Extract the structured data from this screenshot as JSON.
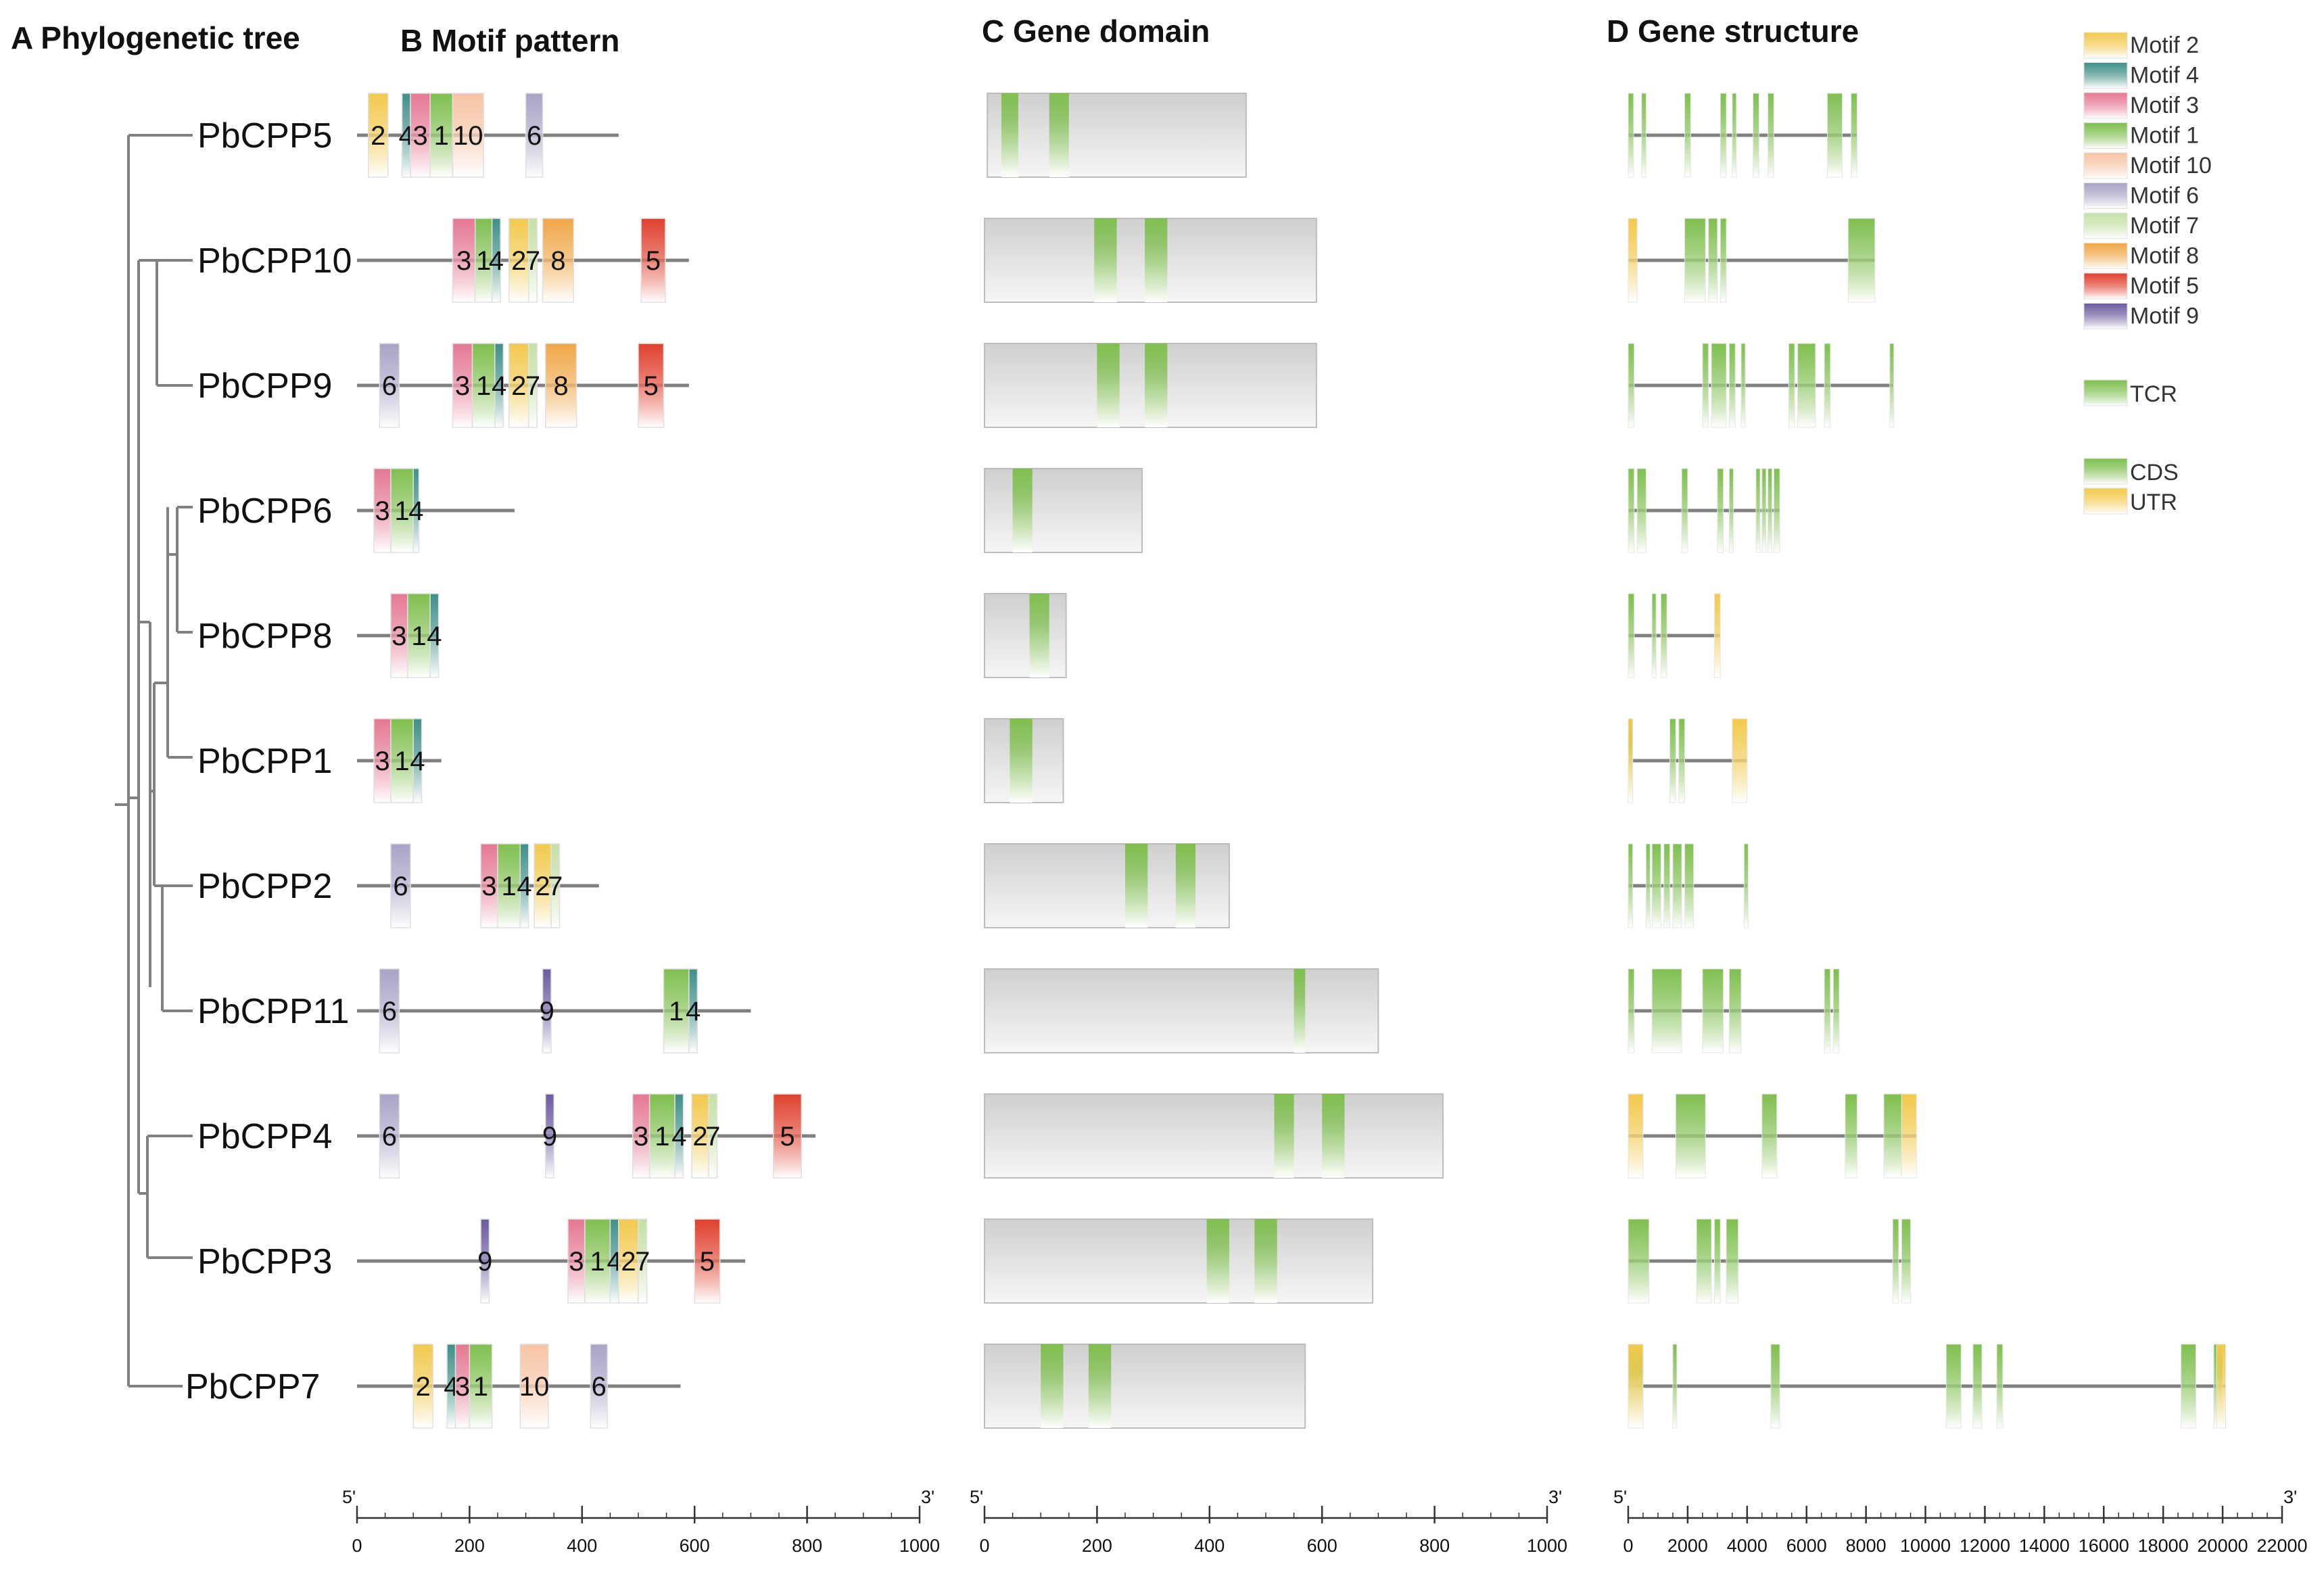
{
  "panels": {
    "a": "A Phylogenetic tree",
    "b": "B Motif pattern",
    "c": "C Gene domain",
    "d": "D Gene structure"
  },
  "colors": {
    "motif_1": "#7fbf4e",
    "motif_2": "#f2c94c",
    "motif_3": "#e57893",
    "motif_4": "#3f8f88",
    "motif_5": "#e0402e",
    "motif_6": "#a9a3c6",
    "motif_7": "#c5e0a6",
    "motif_8": "#f0a748",
    "motif_9": "#6c5a9e",
    "motif_10": "#f7c4a4",
    "tcr": "#7fbf4e",
    "cds": "#7fbf4e",
    "utr": "#f2c94c",
    "line": "#808080",
    "domain_box": "#d9d9d9"
  },
  "legend": {
    "motifs": [
      {
        "id": "2",
        "label": "Motif 2"
      },
      {
        "id": "4",
        "label": "Motif 4"
      },
      {
        "id": "3",
        "label": "Motif 3"
      },
      {
        "id": "1",
        "label": "Motif 1"
      },
      {
        "id": "10",
        "label": "Motif 10"
      },
      {
        "id": "6",
        "label": "Motif 6"
      },
      {
        "id": "7",
        "label": "Motif 7"
      },
      {
        "id": "8",
        "label": "Motif 8"
      },
      {
        "id": "5",
        "label": "Motif 5"
      },
      {
        "id": "9",
        "label": "Motif 9"
      }
    ],
    "tcr": "TCR",
    "cds": "CDS",
    "utr": "UTR"
  },
  "axes": {
    "b": {
      "min": 0,
      "max": 1000,
      "ticks": [
        "0",
        "200",
        "400",
        "600",
        "800",
        "1000"
      ],
      "start": "5'",
      "end": "3'"
    },
    "c": {
      "min": 0,
      "max": 1000,
      "ticks": [
        "0",
        "200",
        "400",
        "600",
        "800",
        "1000"
      ],
      "start": "5'",
      "end": "3'"
    },
    "d": {
      "min": 0,
      "max": 22000,
      "ticks": [
        "0",
        "2000",
        "4000",
        "6000",
        "8000",
        "10000",
        "12000",
        "14000",
        "16000",
        "18000",
        "20000",
        "22000"
      ],
      "start": "5'",
      "end": "3'"
    }
  },
  "genes": [
    {
      "name": "PbCPP5",
      "length": 465,
      "motifs": [
        [
          20,
          55,
          "2",
          "2"
        ],
        [
          80,
          95,
          "4",
          "4"
        ],
        [
          95,
          130,
          "3",
          "3"
        ],
        [
          130,
          170,
          "1",
          "1"
        ],
        [
          170,
          225,
          "10",
          "10"
        ],
        [
          300,
          330,
          "6",
          "6"
        ]
      ],
      "domain": {
        "start": 5,
        "end": 465,
        "tcr": [
          [
            30,
            60
          ],
          [
            115,
            150
          ]
        ]
      },
      "structure": {
        "start": 0,
        "end": 7700,
        "cds": [
          [
            0,
            180
          ],
          [
            450,
            600
          ],
          [
            1900,
            2100
          ],
          [
            3100,
            3300
          ],
          [
            3500,
            3600
          ],
          [
            4200,
            4400
          ],
          [
            4700,
            4900
          ],
          [
            6700,
            7200
          ],
          [
            7500,
            7700
          ]
        ],
        "utr": []
      }
    },
    {
      "name": "PbCPP10",
      "length": 590,
      "motifs": [
        [
          170,
          210,
          "3",
          "3"
        ],
        [
          210,
          240,
          "1",
          "1"
        ],
        [
          240,
          255,
          "4",
          "4"
        ],
        [
          270,
          305,
          "2",
          "2"
        ],
        [
          305,
          320,
          "7",
          "7"
        ],
        [
          330,
          385,
          "8",
          "8"
        ],
        [
          505,
          548,
          "5",
          "5"
        ]
      ],
      "domain": {
        "start": 0,
        "end": 590,
        "tcr": [
          [
            195,
            235
          ],
          [
            285,
            325
          ]
        ]
      },
      "structure": {
        "start": 0,
        "end": 8300,
        "cds": [
          [
            1900,
            2600
          ],
          [
            2700,
            3000
          ],
          [
            3100,
            3300
          ],
          [
            7400,
            8300
          ]
        ],
        "utr": [
          [
            0,
            300
          ]
        ]
      }
    },
    {
      "name": "PbCPP9",
      "length": 590,
      "motifs": [
        [
          40,
          75,
          "6",
          "6"
        ],
        [
          170,
          205,
          "3",
          "3"
        ],
        [
          205,
          245,
          "1",
          "1"
        ],
        [
          245,
          260,
          "4",
          "4"
        ],
        [
          270,
          305,
          "2",
          "2"
        ],
        [
          305,
          320,
          "7",
          "7"
        ],
        [
          335,
          390,
          "8",
          "8"
        ],
        [
          500,
          545,
          "5",
          "5"
        ]
      ],
      "domain": {
        "start": 0,
        "end": 590,
        "tcr": [
          [
            200,
            240
          ],
          [
            285,
            325
          ]
        ]
      },
      "structure": {
        "start": 0,
        "end": 8900,
        "cds": [
          [
            0,
            200
          ],
          [
            2500,
            2700
          ],
          [
            2800,
            3300
          ],
          [
            3400,
            3600
          ],
          [
            3800,
            3900
          ],
          [
            5400,
            5600
          ],
          [
            5700,
            6300
          ],
          [
            6600,
            6800
          ],
          [
            8800,
            8900
          ]
        ],
        "utr": []
      }
    },
    {
      "name": "PbCPP6",
      "length": 280,
      "motifs": [
        [
          30,
          60,
          "3",
          "3"
        ],
        [
          60,
          100,
          "1",
          "1"
        ],
        [
          100,
          110,
          "4",
          "4"
        ]
      ],
      "domain": {
        "start": 0,
        "end": 280,
        "tcr": [
          [
            50,
            85
          ]
        ]
      },
      "structure": {
        "start": 0,
        "end": 5100,
        "cds": [
          [
            0,
            200
          ],
          [
            300,
            600
          ],
          [
            1800,
            2000
          ],
          [
            3000,
            3200
          ],
          [
            3400,
            3500
          ],
          [
            4300,
            4400
          ],
          [
            4500,
            4600
          ],
          [
            4700,
            4800
          ],
          [
            4900,
            5100
          ]
        ],
        "utr": []
      }
    },
    {
      "name": "PbCPP8",
      "length": 145,
      "motifs": [
        [
          60,
          90,
          "3",
          "3"
        ],
        [
          90,
          130,
          "1",
          "1"
        ],
        [
          130,
          145,
          "4",
          "4"
        ]
      ],
      "domain": {
        "start": 0,
        "end": 145,
        "tcr": [
          [
            80,
            115
          ]
        ]
      },
      "structure": {
        "start": 0,
        "end": 3100,
        "cds": [
          [
            0,
            200
          ],
          [
            800,
            900
          ],
          [
            1100,
            1300
          ]
        ],
        "utr": [
          [
            2900,
            3100
          ]
        ]
      }
    },
    {
      "name": "PbCPP1",
      "length": 150,
      "motifs": [
        [
          30,
          60,
          "3",
          "3"
        ],
        [
          60,
          100,
          "1",
          "1"
        ],
        [
          100,
          115,
          "4",
          "4"
        ]
      ],
      "domain": {
        "start": 0,
        "end": 140,
        "tcr": [
          [
            45,
            85
          ]
        ]
      },
      "structure": {
        "start": 0,
        "end": 4000,
        "cds": [
          [
            0,
            150
          ],
          [
            1400,
            1600
          ],
          [
            1700,
            1900
          ]
        ],
        "utr": [
          [
            0,
            150
          ],
          [
            3500,
            4000
          ]
        ]
      }
    },
    {
      "name": "PbCPP2",
      "length": 430,
      "motifs": [
        [
          60,
          95,
          "6",
          "6"
        ],
        [
          220,
          250,
          "3",
          "3"
        ],
        [
          250,
          290,
          "1",
          "1"
        ],
        [
          290,
          305,
          "4",
          "4"
        ],
        [
          315,
          345,
          "2",
          "2"
        ],
        [
          345,
          360,
          "7",
          "7"
        ]
      ],
      "domain": {
        "start": 0,
        "end": 435,
        "tcr": [
          [
            250,
            290
          ],
          [
            340,
            375
          ]
        ]
      },
      "structure": {
        "start": 0,
        "end": 4000,
        "cds": [
          [
            0,
            150
          ],
          [
            600,
            700
          ],
          [
            800,
            1100
          ],
          [
            1200,
            1400
          ],
          [
            1500,
            1800
          ],
          [
            1900,
            2200
          ],
          [
            3900,
            4000
          ]
        ],
        "utr": []
      }
    },
    {
      "name": "PbCPP11",
      "length": 700,
      "motifs": [
        [
          40,
          75,
          "6",
          "6"
        ],
        [
          330,
          345,
          "9",
          "9"
        ],
        [
          545,
          590,
          "1",
          "1"
        ],
        [
          590,
          605,
          "4",
          "4"
        ]
      ],
      "domain": {
        "start": 0,
        "end": 700,
        "tcr": [
          [
            550,
            570
          ]
        ]
      },
      "structure": {
        "start": 0,
        "end": 7100,
        "cds": [
          [
            0,
            200
          ],
          [
            800,
            1800
          ],
          [
            2500,
            3200
          ],
          [
            3400,
            3800
          ],
          [
            6600,
            6800
          ],
          [
            6900,
            7100
          ]
        ],
        "utr": []
      }
    },
    {
      "name": "PbCPP4",
      "length": 815,
      "motifs": [
        [
          40,
          75,
          "6",
          "6"
        ],
        [
          335,
          350,
          "9",
          "9"
        ],
        [
          490,
          520,
          "3",
          "3"
        ],
        [
          520,
          565,
          "1",
          "1"
        ],
        [
          565,
          580,
          "4",
          "4"
        ],
        [
          595,
          625,
          "2",
          "2"
        ],
        [
          625,
          640,
          "7",
          "7"
        ],
        [
          740,
          790,
          "5",
          "5"
        ]
      ],
      "domain": {
        "start": 0,
        "end": 815,
        "tcr": [
          [
            515,
            550
          ],
          [
            600,
            640
          ]
        ]
      },
      "structure": {
        "start": 0,
        "end": 9700,
        "cds": [
          [
            1600,
            2600
          ],
          [
            4500,
            5000
          ],
          [
            7300,
            7700
          ],
          [
            8600,
            9200
          ]
        ],
        "utr": [
          [
            0,
            500
          ],
          [
            9200,
            9700
          ]
        ]
      }
    },
    {
      "name": "PbCPP3",
      "length": 690,
      "motifs": [
        [
          220,
          235,
          "9",
          "9"
        ],
        [
          375,
          405,
          "3",
          "3"
        ],
        [
          405,
          450,
          "1",
          "1"
        ],
        [
          450,
          465,
          "4",
          "4"
        ],
        [
          465,
          500,
          "2",
          "2"
        ],
        [
          500,
          515,
          "7",
          "7"
        ],
        [
          600,
          645,
          "5",
          "5"
        ]
      ],
      "domain": {
        "start": 0,
        "end": 690,
        "tcr": [
          [
            395,
            435
          ],
          [
            480,
            520
          ]
        ]
      },
      "structure": {
        "start": 0,
        "end": 9500,
        "cds": [
          [
            0,
            700
          ],
          [
            2300,
            2800
          ],
          [
            2900,
            3100
          ],
          [
            3300,
            3700
          ],
          [
            8900,
            9100
          ],
          [
            9200,
            9500
          ]
        ],
        "utr": []
      }
    },
    {
      "name": "PbCPP7",
      "length": 575,
      "motifs": [
        [
          100,
          135,
          "2",
          "2"
        ],
        [
          160,
          175,
          "4",
          "4"
        ],
        [
          175,
          200,
          "3",
          "3"
        ],
        [
          200,
          240,
          "1",
          "1"
        ],
        [
          290,
          340,
          "10",
          "10"
        ],
        [
          415,
          445,
          "6",
          "6"
        ]
      ],
      "domain": {
        "start": 0,
        "end": 570,
        "tcr": [
          [
            100,
            140
          ],
          [
            185,
            225
          ]
        ]
      },
      "structure": {
        "start": 0,
        "end": 20100,
        "cds": [
          [
            0,
            500
          ],
          [
            1500,
            1600
          ],
          [
            4800,
            5100
          ],
          [
            10700,
            11200
          ],
          [
            11600,
            11900
          ],
          [
            12400,
            12600
          ],
          [
            18600,
            19100
          ],
          [
            19700,
            20000
          ]
        ],
        "utr": [
          [
            0,
            500
          ],
          [
            19800,
            20100
          ]
        ]
      }
    }
  ]
}
